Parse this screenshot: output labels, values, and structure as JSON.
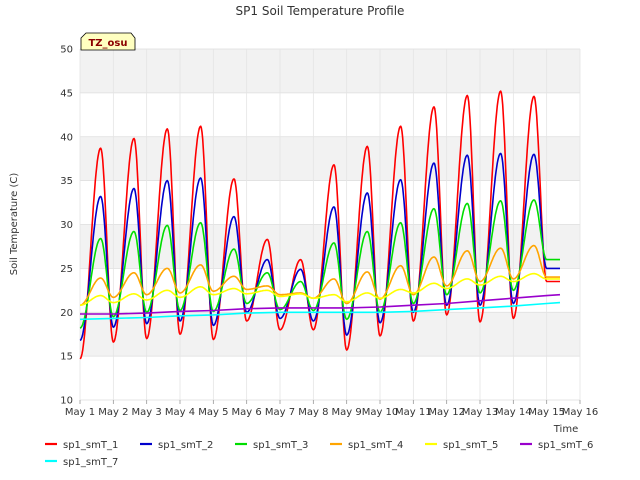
{
  "chart_data": {
    "type": "line",
    "title": "SP1 Soil Temperature Profile",
    "xlabel": "Time",
    "ylabel": "Soil Temperature (C)",
    "badge": "TZ_osu",
    "ylim": [
      10,
      50
    ],
    "yticks": [
      10,
      15,
      20,
      25,
      30,
      35,
      40,
      45,
      50
    ],
    "xlim": [
      1,
      16
    ],
    "xticks": [
      1,
      2,
      3,
      4,
      5,
      6,
      7,
      8,
      9,
      10,
      11,
      12,
      13,
      14,
      15,
      16
    ],
    "xtick_labels": [
      "May 1",
      "May 2",
      "May 3",
      "May 4",
      "May 5",
      "May 6",
      "May 7",
      "May 8",
      "May 9",
      "May 10",
      "May 11",
      "May 12",
      "May 13",
      "May 14",
      "May 15",
      "May 16"
    ],
    "x_start": 1.0,
    "x_end": 15.4,
    "peak_time": 0.62,
    "mean_x": [
      1,
      2,
      3,
      4,
      5,
      6,
      7,
      8,
      9,
      10,
      11,
      12,
      13,
      14,
      15,
      15.4
    ],
    "series": [
      {
        "name": "sp1_smT_1",
        "color": "#ff0000",
        "day_mins": [
          14.7,
          16.6,
          17.0,
          17.5,
          16.9,
          19.0,
          18.0,
          18.0,
          15.7,
          17.3,
          19.0,
          19.7,
          18.9,
          19.3,
          23.5
        ],
        "day_maxs": [
          38.7,
          39.8,
          40.9,
          41.2,
          35.2,
          28.3,
          26.0,
          36.8,
          38.9,
          41.2,
          43.4,
          44.7,
          45.2,
          44.6
        ]
      },
      {
        "name": "sp1_smT_2",
        "color": "#0000cc",
        "day_mins": [
          16.8,
          18.3,
          18.7,
          19.0,
          18.5,
          20.0,
          19.3,
          19.0,
          17.4,
          18.8,
          20.0,
          20.8,
          20.8,
          21.0,
          25.0
        ],
        "day_maxs": [
          33.2,
          34.1,
          35.0,
          35.3,
          30.9,
          26.0,
          24.9,
          32.0,
          33.6,
          35.1,
          37.0,
          37.9,
          38.1,
          38.0
        ]
      },
      {
        "name": "sp1_smT_3",
        "color": "#00dd00",
        "day_mins": [
          18.2,
          19.5,
          20.0,
          20.2,
          20.1,
          21.0,
          20.3,
          20.2,
          19.2,
          20.0,
          21.0,
          22.0,
          22.2,
          22.5,
          26.0
        ],
        "day_maxs": [
          28.4,
          29.2,
          29.9,
          30.2,
          27.2,
          24.5,
          23.5,
          27.9,
          29.2,
          30.2,
          31.8,
          32.4,
          32.7,
          32.8
        ]
      },
      {
        "name": "sp1_smT_4",
        "color": "#ffa500",
        "day_mins": [
          20.8,
          21.7,
          22.0,
          22.2,
          22.4,
          22.6,
          22.0,
          21.6,
          21.0,
          21.5,
          22.0,
          23.0,
          23.5,
          23.8,
          24.0
        ],
        "day_maxs": [
          23.9,
          24.5,
          25.0,
          25.4,
          24.1,
          23.0,
          22.2,
          23.8,
          24.6,
          25.3,
          26.3,
          27.0,
          27.3,
          27.6
        ]
      },
      {
        "name": "sp1_smT_5",
        "color": "#ffff00",
        "day_mins": [
          20.8,
          21.1,
          21.4,
          21.7,
          22.0,
          22.1,
          21.8,
          21.6,
          21.2,
          21.6,
          22.2,
          22.7,
          23.1,
          23.5,
          23.8
        ],
        "day_maxs": [
          21.9,
          22.1,
          22.5,
          22.9,
          22.7,
          22.5,
          22.1,
          22.0,
          22.2,
          22.6,
          23.3,
          23.8,
          24.1,
          24.4
        ]
      },
      {
        "name": "sp1_smT_6",
        "color": "#9900cc",
        "line": [
          19.8,
          19.8,
          19.9,
          20.1,
          20.2,
          20.4,
          20.5,
          20.5,
          20.5,
          20.6,
          20.8,
          21.0,
          21.3,
          21.6,
          21.9,
          22.0
        ]
      },
      {
        "name": "sp1_smT_7",
        "color": "#00ffff",
        "line": [
          19.2,
          19.3,
          19.4,
          19.6,
          19.7,
          19.9,
          20.0,
          20.0,
          20.0,
          20.0,
          20.1,
          20.3,
          20.5,
          20.7,
          21.0,
          21.1
        ]
      }
    ],
    "legend": [
      "sp1_smT_1",
      "sp1_smT_2",
      "sp1_smT_3",
      "sp1_smT_4",
      "sp1_smT_5",
      "sp1_smT_6",
      "sp1_smT_7"
    ],
    "legend_placement": "bottom",
    "grid": true
  }
}
